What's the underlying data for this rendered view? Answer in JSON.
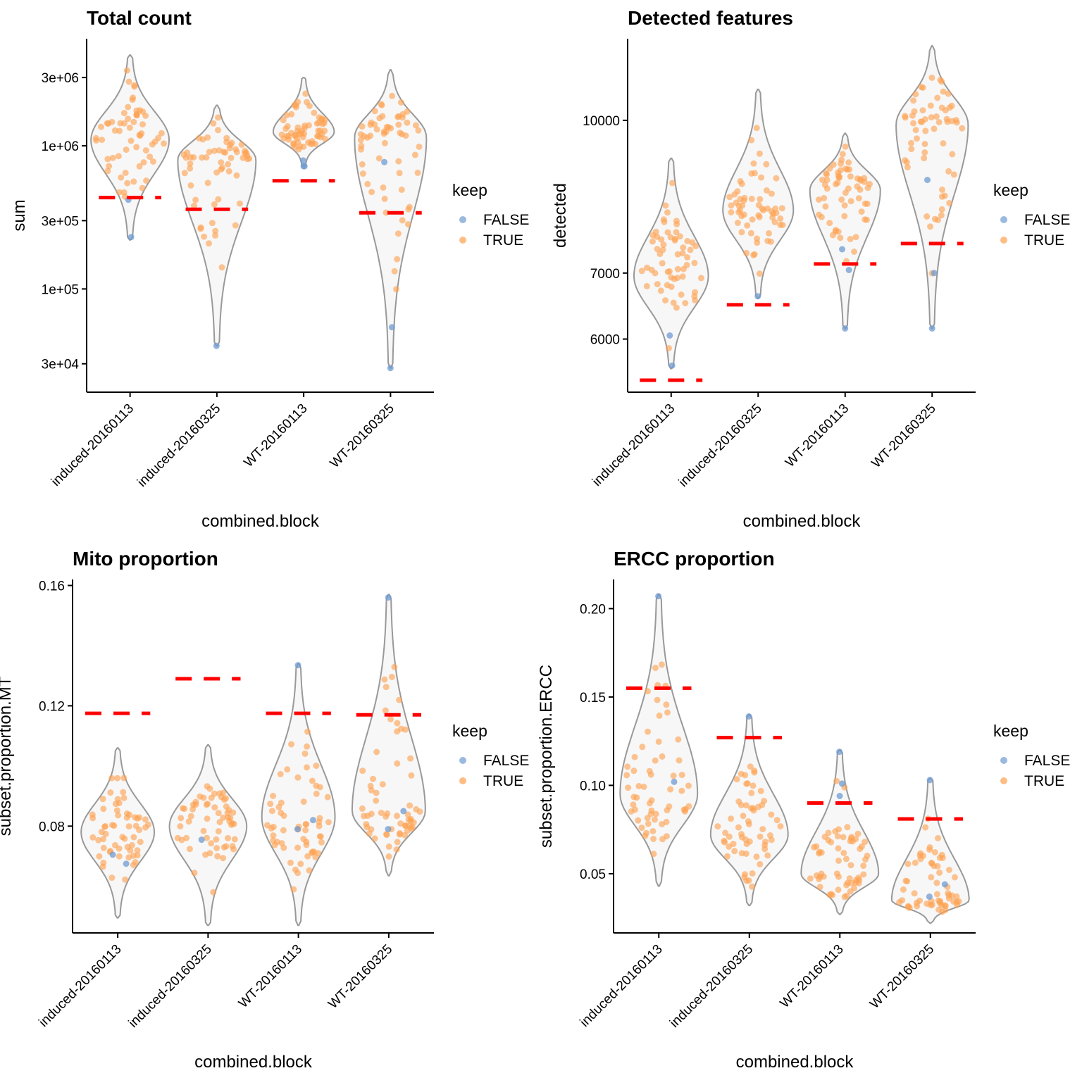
{
  "figure": {
    "categories": [
      "induced-20160113",
      "induced-20160325",
      "WT-20160113",
      "WT-20160325"
    ],
    "legend": {
      "title": "keep",
      "items": [
        {
          "label": "FALSE",
          "color": "#6f9bd1"
        },
        {
          "label": "TRUE",
          "color": "#fda150"
        }
      ]
    },
    "colors": {
      "violin_fill": "#f7f7f7",
      "violin_stroke": "#999999",
      "threshold": "#ff0000",
      "axis": "#000000"
    }
  },
  "chart_data": [
    {
      "type": "violin",
      "title": "Total count",
      "xlabel": "combined.block",
      "ylabel": "sum",
      "scale": "log10",
      "ylim": [
        19000,
        5600000
      ],
      "yticks": [
        30000,
        100000,
        300000,
        1000000,
        3000000
      ],
      "yticklabels": [
        "3e+04",
        "1e+05",
        "3e+05",
        "1e+06",
        "3e+06"
      ],
      "groups": [
        {
          "category": "induced-20160113",
          "min": 220000,
          "max": 4300000,
          "median": 1100000,
          "width": 1.0,
          "threshold": 435000,
          "n": 60,
          "false_values": [
            420000,
            230000
          ]
        },
        {
          "category": "induced-20160325",
          "min": 40000,
          "max": 1920000,
          "median": 800000,
          "width": 1.0,
          "threshold": 360000,
          "n": 60,
          "false_values": [
            40000
          ]
        },
        {
          "category": "WT-20160113",
          "min": 720000,
          "max": 3000000,
          "median": 1250000,
          "width": 0.78,
          "threshold": 570000,
          "n": 60,
          "false_values": [
            790000,
            720000,
            720000
          ]
        },
        {
          "category": "WT-20160325",
          "min": 28000,
          "max": 3400000,
          "median": 1150000,
          "width": 0.92,
          "threshold": 340000,
          "n": 60,
          "false_values": [
            770000,
            54000,
            28000
          ]
        }
      ]
    },
    {
      "type": "violin",
      "title": "Detected features",
      "xlabel": "combined.block",
      "ylabel": "detected",
      "scale": "log10",
      "ylim": [
        5300,
        12100
      ],
      "yticks": [
        6000,
        7000,
        10000
      ],
      "yticklabels": [
        "6000",
        "7000",
        "10000"
      ],
      "groups": [
        {
          "category": "induced-20160113",
          "min": 5600,
          "max": 9150,
          "median": 6950,
          "width": 0.95,
          "threshold": 5450,
          "n": 60,
          "false_values": [
            6050,
            5640
          ]
        },
        {
          "category": "induced-20160325",
          "min": 6600,
          "max": 10750,
          "median": 8100,
          "width": 0.9,
          "threshold": 6500,
          "n": 60,
          "false_values": [
            6630
          ]
        },
        {
          "category": "WT-20160113",
          "min": 6150,
          "max": 9700,
          "median": 8500,
          "width": 0.9,
          "threshold": 7150,
          "n": 60,
          "false_values": [
            7400,
            7050,
            6150
          ]
        },
        {
          "category": "WT-20160325",
          "min": 6150,
          "max": 11900,
          "median": 9900,
          "width": 0.92,
          "threshold": 7500,
          "n": 60,
          "false_values": [
            8700,
            7000,
            6150
          ]
        }
      ]
    },
    {
      "type": "violin",
      "title": "Mito proportion",
      "xlabel": "combined.block",
      "ylabel": "subset.proportion.MT",
      "scale": "linear",
      "ylim": [
        0.0445,
        0.162
      ],
      "yticks": [
        0.08,
        0.12,
        0.16
      ],
      "yticklabels": [
        "0.08",
        "0.12",
        "0.16"
      ],
      "groups": [
        {
          "category": "induced-20160113",
          "min": 0.0495,
          "max": 0.106,
          "median": 0.078,
          "width": 0.9,
          "threshold": 0.1175,
          "n": 60,
          "false_values": [
            0.0705,
            0.0675
          ]
        },
        {
          "category": "induced-20160325",
          "min": 0.047,
          "max": 0.107,
          "median": 0.08,
          "width": 0.95,
          "threshold": 0.129,
          "n": 60,
          "false_values": [
            0.0755
          ]
        },
        {
          "category": "WT-20160113",
          "min": 0.047,
          "max": 0.134,
          "median": 0.083,
          "width": 0.9,
          "threshold": 0.1175,
          "n": 60,
          "false_values": [
            0.1335,
            0.082,
            0.079
          ]
        },
        {
          "category": "WT-20160325",
          "min": 0.0635,
          "max": 0.157,
          "median": 0.085,
          "width": 0.9,
          "threshold": 0.117,
          "n": 60,
          "false_values": [
            0.156,
            0.085,
            0.079
          ]
        }
      ]
    },
    {
      "type": "violin",
      "title": "ERCC proportion",
      "xlabel": "combined.block",
      "ylabel": "subset.proportion.ERCC",
      "scale": "linear",
      "ylim": [
        0.0165,
        0.2165
      ],
      "yticks": [
        0.05,
        0.1,
        0.15,
        0.2
      ],
      "yticklabels": [
        "0.05",
        "0.10",
        "0.15",
        "0.20"
      ],
      "groups": [
        {
          "category": "induced-20160113",
          "min": 0.043,
          "max": 0.208,
          "median": 0.095,
          "width": 0.95,
          "threshold": 0.155,
          "n": 60,
          "false_values": [
            0.207,
            0.102
          ]
        },
        {
          "category": "induced-20160325",
          "min": 0.032,
          "max": 0.14,
          "median": 0.072,
          "width": 0.95,
          "threshold": 0.127,
          "n": 60,
          "false_values": [
            0.139
          ]
        },
        {
          "category": "WT-20160113",
          "min": 0.027,
          "max": 0.12,
          "median": 0.05,
          "width": 0.95,
          "threshold": 0.09,
          "n": 60,
          "false_values": [
            0.119,
            0.101,
            0.094
          ]
        },
        {
          "category": "WT-20160325",
          "min": 0.022,
          "max": 0.104,
          "median": 0.035,
          "width": 0.95,
          "threshold": 0.081,
          "n": 60,
          "false_values": [
            0.103,
            0.044,
            0.037
          ]
        }
      ]
    }
  ]
}
